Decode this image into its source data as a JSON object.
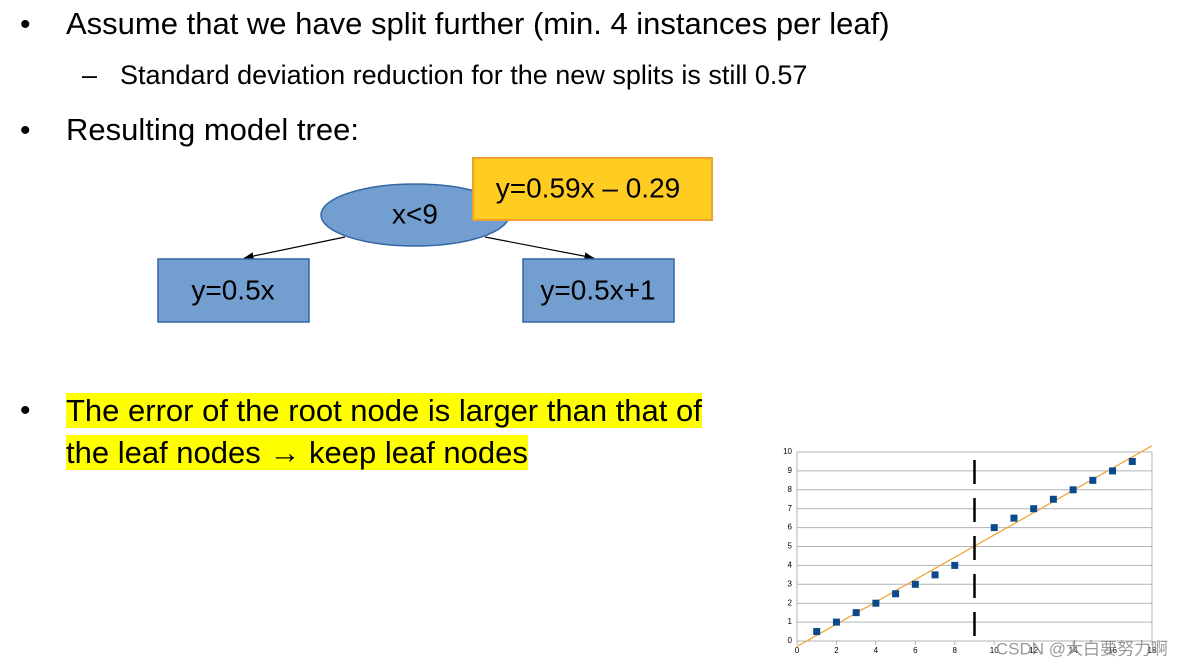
{
  "bullets": [
    {
      "text": "Assume that we have split further (min. 4 instances per leaf)",
      "sub": [
        "Standard deviation reduction for the new splits is still 0.57"
      ]
    },
    {
      "text": "Resulting model tree:"
    },
    {
      "text": "The error of the root node is larger than that of the leaf nodes → keep leaf nodes"
    }
  ],
  "tree": {
    "root": "x<9",
    "root_model": "y=0.59x – 0.29",
    "left": "y=0.5x",
    "right": "y=0.5x+1"
  },
  "watermark": "CSDN @大白要努力啊",
  "chart_data": {
    "type": "scatter",
    "x": [
      1,
      2,
      3,
      4,
      5,
      6,
      7,
      8,
      10,
      11,
      12,
      13,
      14,
      15,
      16,
      17
    ],
    "values": [
      0.5,
      1,
      1.5,
      2,
      2.5,
      3,
      3.5,
      4,
      6,
      6.5,
      7,
      7.5,
      8,
      8.5,
      9,
      9.5
    ],
    "color": "#0b4a8a",
    "xlim": [
      0,
      18
    ],
    "xticks": [
      0,
      2,
      4,
      6,
      8,
      10,
      12,
      14,
      16,
      18
    ],
    "ylim": [
      0,
      10
    ],
    "yticks": [
      0,
      1,
      2,
      3,
      4,
      5,
      6,
      7,
      8,
      9,
      10
    ],
    "grid": true,
    "trendline": {
      "slope": 0.59,
      "intercept": -0.29,
      "color": "#f0a030"
    },
    "split_x": 9
  }
}
